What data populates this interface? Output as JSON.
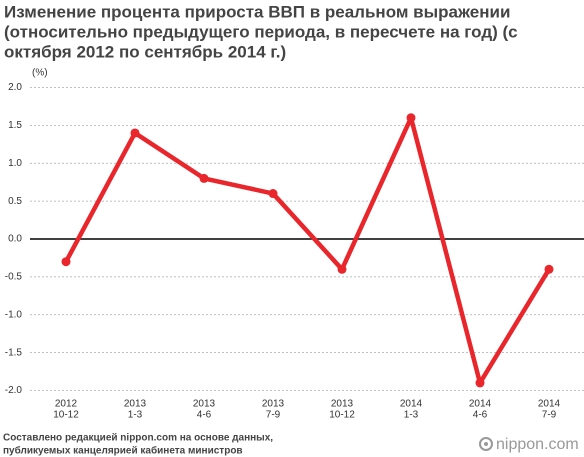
{
  "chart_data": {
    "type": "line",
    "title": [
      "Изменение процента прироста ВВП в реальном выражении",
      "(относительно предыдущего периода, в пересчете на год) (с",
      "октября 2012 по сентябрь 2014 г.)"
    ],
    "y_unit": "(%)",
    "categories": [
      [
        "2012",
        "10-12"
      ],
      [
        "2013",
        "1-3"
      ],
      [
        "2013",
        "4-6"
      ],
      [
        "2013",
        "7-9"
      ],
      [
        "2013",
        "10-12"
      ],
      [
        "2014",
        "1-3"
      ],
      [
        "2014",
        "4-6"
      ],
      [
        "2014",
        "7-9"
      ]
    ],
    "values": [
      -0.3,
      1.4,
      0.8,
      0.6,
      -0.4,
      1.6,
      -1.9,
      -0.4
    ],
    "color": "#e8262b",
    "ylim": [
      -2,
      2
    ],
    "yticks": [
      {
        "value": 2,
        "label": "2.0"
      },
      1.5,
      {
        "value": 1,
        "label": "1.0"
      },
      0.5,
      {
        "value": 0,
        "label": "0.0"
      },
      -0.5,
      {
        "value": -1,
        "label": "-1.0"
      },
      -1.5,
      {
        "value": -2,
        "label": "-2.0"
      }
    ],
    "grid": true,
    "source": [
      "Составлено редакцией nippon.com на основе данных,",
      "публикуемых канцелярией кабинета министров"
    ],
    "logo": "nippon.com"
  }
}
